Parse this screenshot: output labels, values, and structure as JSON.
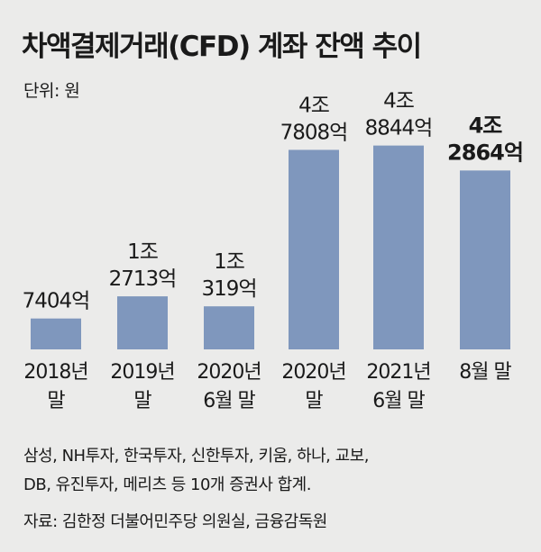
{
  "title": "차액결제거래(CFD) 계좌 잔액 추이",
  "unit": "단위: 원",
  "chart_data": {
    "type": "bar",
    "categories": [
      [
        "2018년",
        "말"
      ],
      [
        "2019년",
        "말"
      ],
      [
        "2020년",
        "6월 말"
      ],
      [
        "2020년",
        "말"
      ],
      [
        "2021년",
        "6월 말"
      ],
      [
        "8월 말"
      ]
    ],
    "values": [
      7404,
      12713,
      10319,
      47808,
      48844,
      42864
    ],
    "value_unit": "억원",
    "value_labels": [
      [
        "7404억"
      ],
      [
        "1조",
        "2713억"
      ],
      [
        "1조",
        "319억"
      ],
      [
        "4조",
        "7808억"
      ],
      [
        "4조",
        "8844억"
      ],
      [
        "4조",
        "2864억"
      ]
    ],
    "highlight_index": 5,
    "ylim": [
      0,
      52000
    ],
    "bar_color": "#7f97bd"
  },
  "notes": [
    "삼성, NH투자, 한국투자, 신한투자, 키움, 하나, 교보,",
    "DB, 유진투자, 메리츠 등 10개 증권사 합계."
  ],
  "source": "자료: 김한정 더불어민주당 의원실, 금융감독원"
}
